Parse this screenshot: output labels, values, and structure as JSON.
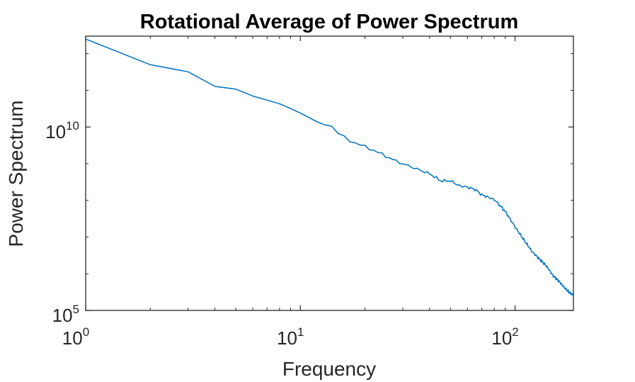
{
  "chart_data": {
    "type": "line",
    "title": "Rotational Average of Power Spectrum",
    "xlabel": "Frequency",
    "ylabel": "Power Spectrum",
    "x_scale": "log",
    "y_scale": "log",
    "xlim": [
      1,
      187
    ],
    "ylim": [
      100000,
      3000000000000
    ],
    "grid": false,
    "x_ticks": [
      {
        "value": 1,
        "base": "10",
        "exp": "0"
      },
      {
        "value": 10,
        "base": "10",
        "exp": "1"
      },
      {
        "value": 100,
        "base": "10",
        "exp": "2"
      }
    ],
    "y_ticks": [
      {
        "value": 100000,
        "base": "10",
        "exp": "5"
      },
      {
        "value": 10000000000,
        "base": "10",
        "exp": "10"
      }
    ],
    "series": [
      {
        "color": "#0072bd",
        "x": [
          1,
          2,
          3,
          4,
          5,
          6,
          7,
          8,
          9,
          10,
          12,
          14,
          15,
          17,
          20,
          22,
          25,
          28,
          30,
          35,
          40,
          45,
          50,
          55,
          60,
          65,
          70,
          80,
          90,
          100,
          110,
          120,
          130,
          140,
          150,
          160,
          170,
          180,
          187
        ],
        "y": [
          2500000000000.0,
          500000000000.0,
          320000000000.0,
          128000000000.0,
          108000000000.0,
          70000000000.0,
          54000000000.0,
          43000000000.0,
          32000000000.0,
          24000000000.0,
          13000000000.0,
          10800000000.0,
          6700000000.0,
          4200000000.0,
          2900000000.0,
          2300000000.0,
          1600000000.0,
          1170000000.0,
          990000000.0,
          710000000.0,
          530000000.0,
          340000000.0,
          340000000.0,
          250000000.0,
          230000000.0,
          200000000.0,
          141000000.0,
          105000000.0,
          50000000.0,
          18800000.0,
          8300000.0,
          4000000.0,
          2500000.0,
          1620000.0,
          900000.0,
          630000.0,
          410000.0,
          300000.0,
          260000.0
        ]
      }
    ]
  }
}
